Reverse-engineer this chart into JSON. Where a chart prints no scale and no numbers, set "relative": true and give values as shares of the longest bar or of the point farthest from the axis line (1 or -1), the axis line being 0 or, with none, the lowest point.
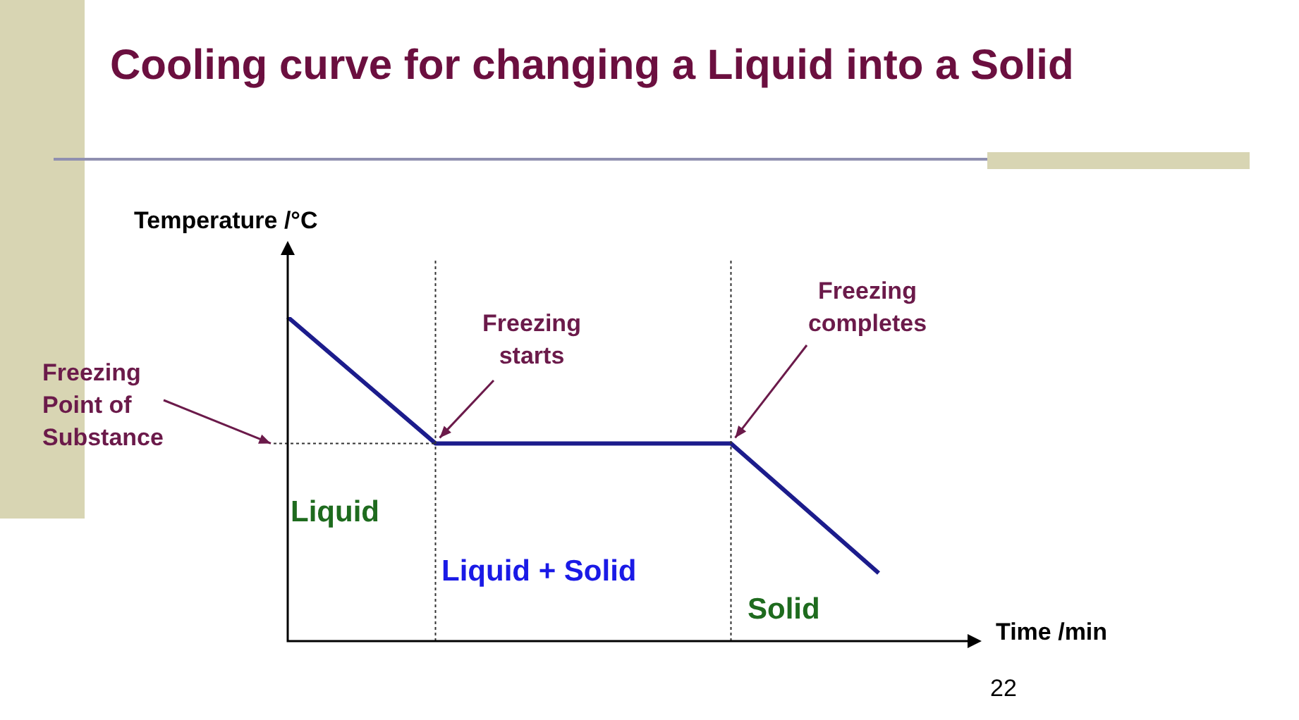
{
  "chart_data": {
    "type": "line",
    "title": "Cooling curve for changing a Liquid into a Solid",
    "xlabel": "Time /min",
    "ylabel": "Temperature /°C",
    "relative": true,
    "categories": [
      null,
      null,
      null,
      null,
      null
    ],
    "series": [
      {
        "color": "#1c1c8c",
        "values": [
          1,
          0.61,
          0.61,
          0.61,
          0.21
        ]
      }
    ],
    "marker": "none",
    "legend": false,
    "ref_lines": [
      {
        "axis": "y",
        "value": 0.61,
        "line_style": "dotted",
        "color": "#333333"
      }
    ],
    "annotations": [
      "Freezing Point of Substance",
      "Freezing starts",
      "Freezing completes",
      "Liquid",
      "Liquid + Solid",
      "Solid",
      "22"
    ]
  }
}
